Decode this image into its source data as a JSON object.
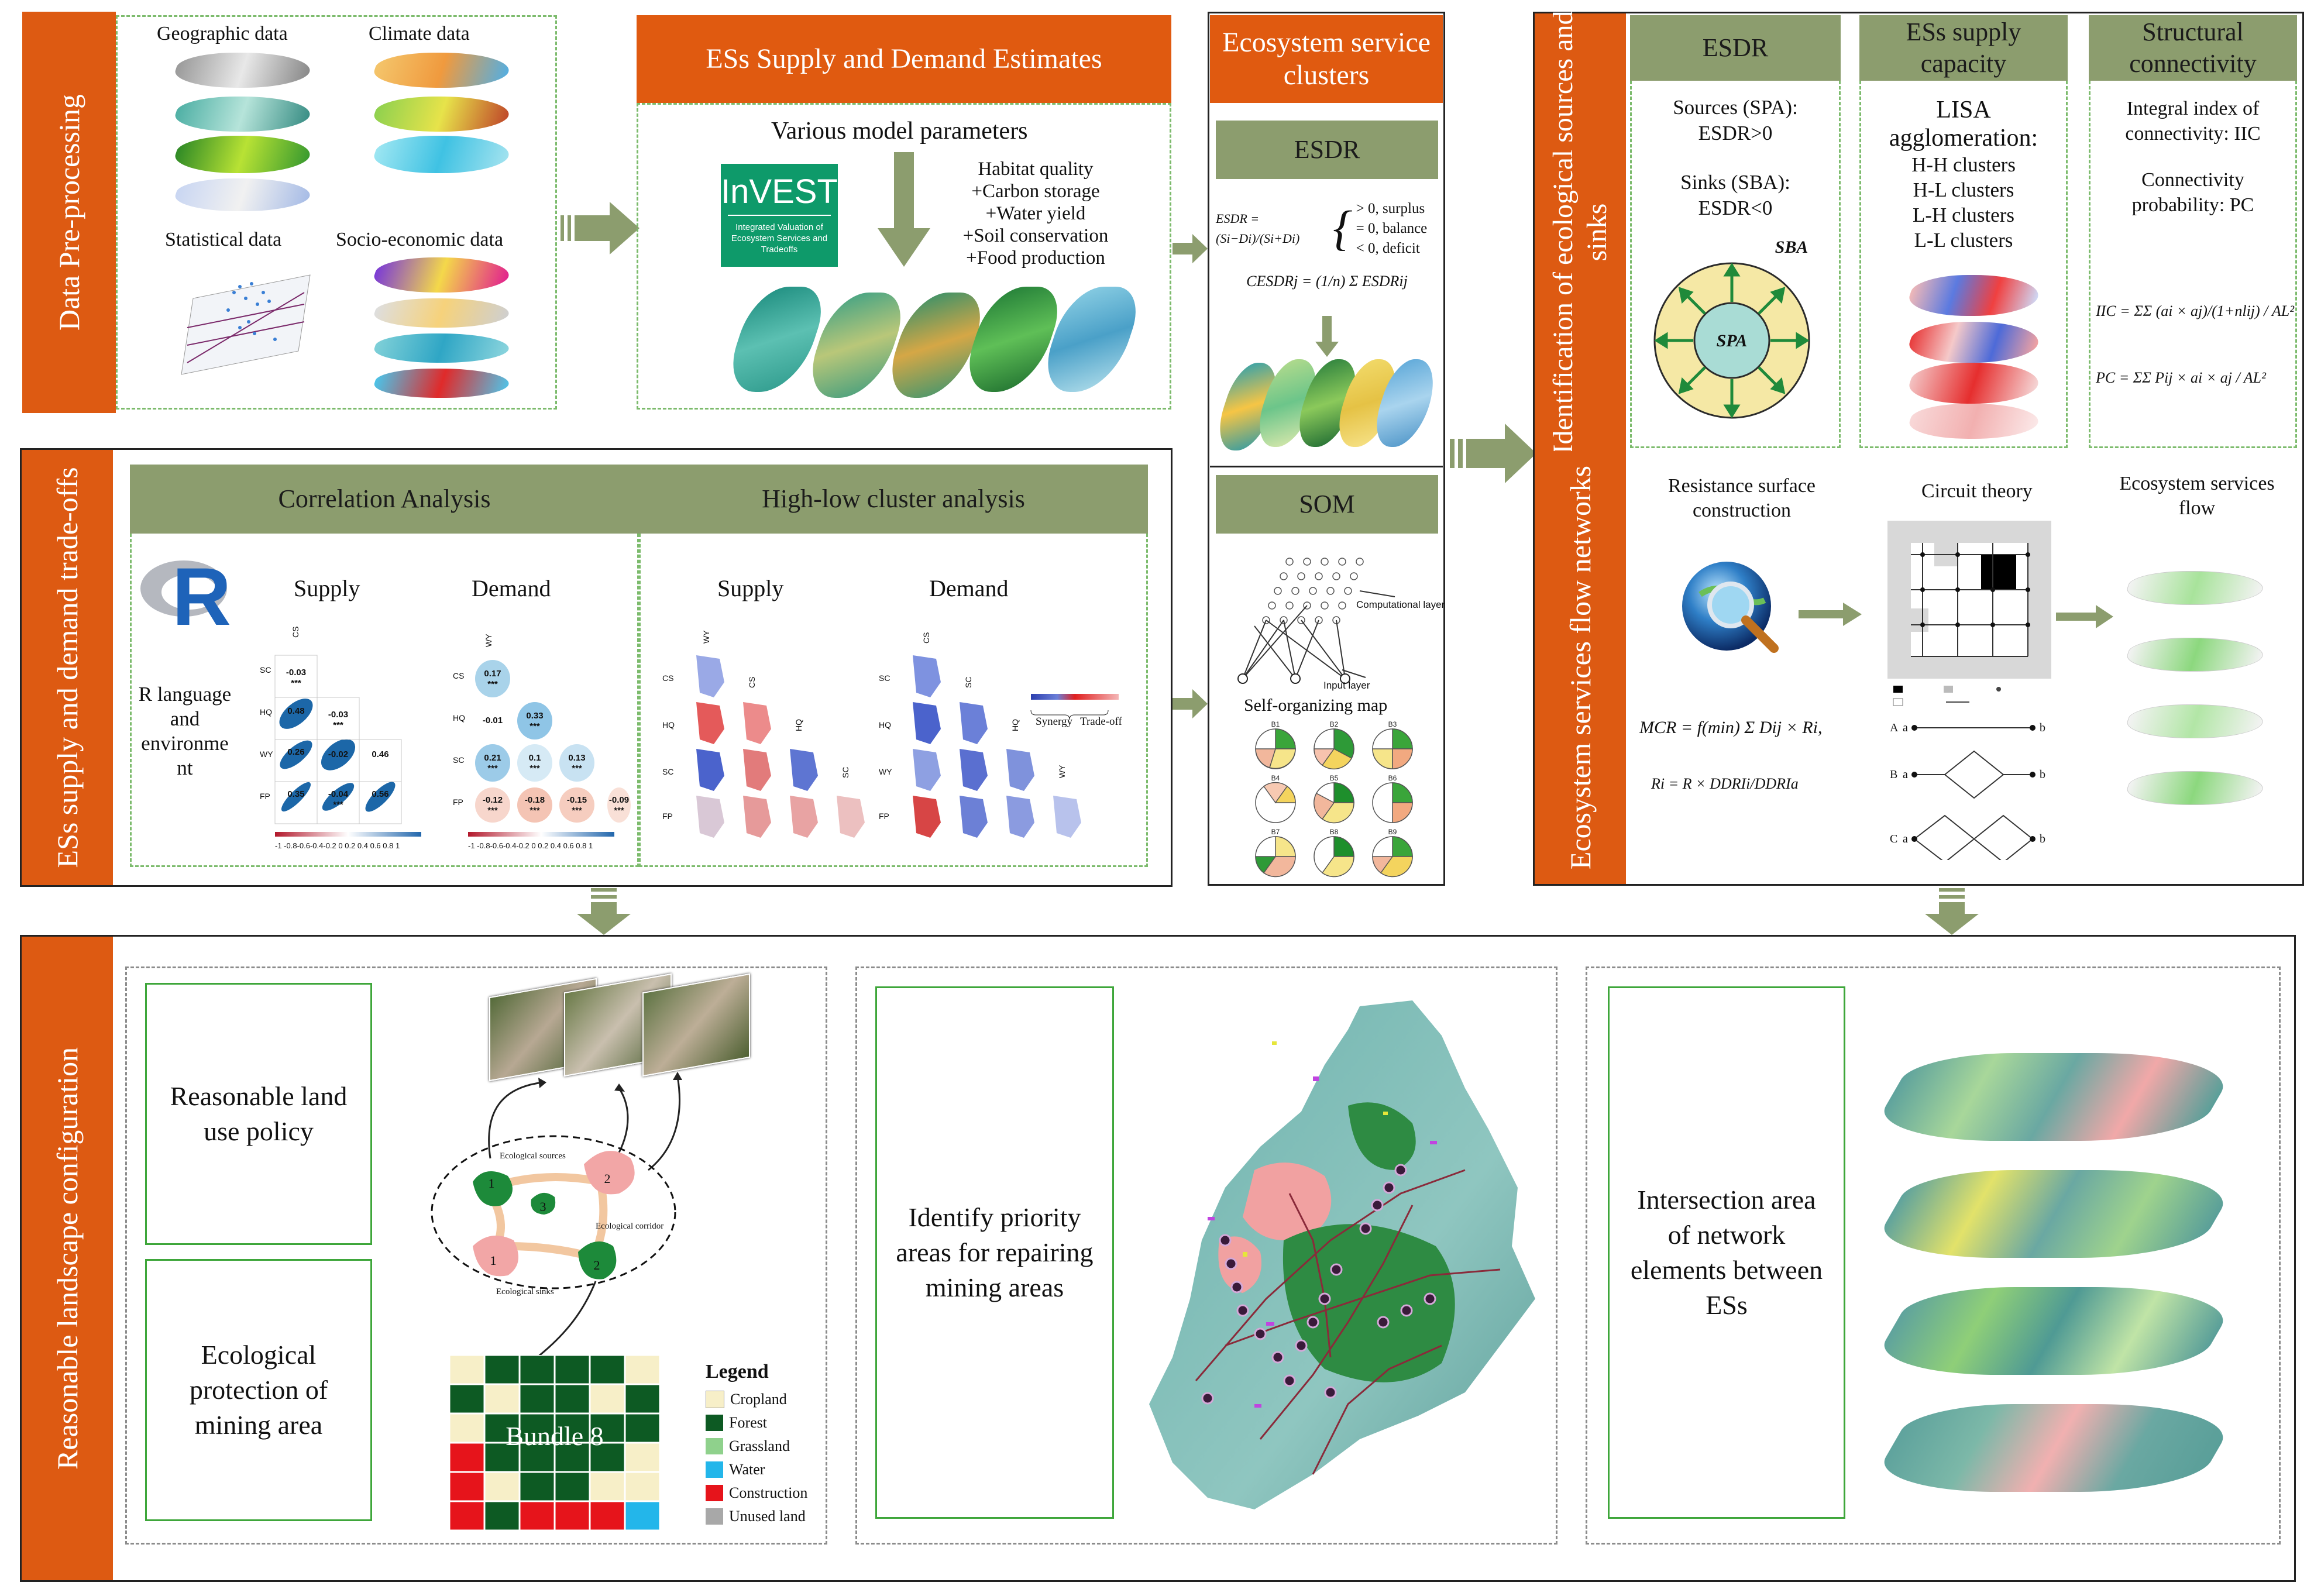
{
  "sections": {
    "preprocessing": {
      "title": "Data Pre-processing",
      "labels": [
        "Geographic data",
        "Climate data",
        "Statistical data",
        "Socio-economic data"
      ]
    },
    "estimates": {
      "title": "ESs Supply and Demand Estimates",
      "subtitle": "Various model parameters",
      "invest_logo": "InVEST",
      "invest_sub": "Integrated Valuation of Ecosystem Services and Tradeoffs",
      "services": [
        "Habitat quality",
        "+Carbon storage",
        "+Water yield",
        "+Soil conservation",
        "+Food production"
      ]
    },
    "clusters": {
      "title": "Ecosystem service clusters",
      "esdr_head": "ESDR",
      "esdr_formula": "ESDR = (Si−Di)/(Si+Di)",
      "esdr_cases": [
        "> 0, surplus",
        "= 0, balance",
        "< 0, deficit"
      ],
      "cesdr_formula": "CESDRj = (1/n) Σ ESDRij",
      "som_head": "SOM",
      "comp_layer": "Computational layer",
      "input_layer": "Input layer",
      "som_map": "Self-organizing map",
      "bundle_labels": [
        "B1",
        "B2",
        "B3",
        "B4",
        "B5",
        "B6",
        "B7",
        "B8",
        "B9"
      ]
    },
    "identification": {
      "title": "Identification of ecological sources and sinks",
      "col1_head": "ESDR",
      "col1_lines": [
        "Sources (SPA):",
        "ESDR>0",
        "Sinks (SBA):",
        "ESDR<0"
      ],
      "spa": "SPA",
      "sba": "SBA",
      "col2_head": "ESs supply capacity",
      "col2_lines": [
        "LISA",
        "agglomeration:",
        "H-H clusters",
        "H-L clusters",
        "L-H clusters",
        "L-L clusters"
      ],
      "col3_head": "Structural connectivity",
      "col3_lines": [
        "Integral index of",
        "connectivity: IIC",
        "Connectivity",
        "probability: PC"
      ],
      "iic_formula": "IIC = ΣΣ (ai × aj)/(1+nlij) / AL²",
      "pc_formula": "PC = ΣΣ Pij × ai × aj / AL²"
    },
    "tradeoffs": {
      "title": "ESs supply and demand trade-offs",
      "corr_head": "Correlation Analysis",
      "cluster_head": "High-low cluster analysis",
      "r_logo": "R",
      "r_text": [
        "R language",
        "and",
        "environme",
        "nt"
      ],
      "supply": "Supply",
      "demand": "Demand",
      "supply2": "Supply",
      "demand2": "Demand",
      "synergy": "Synergy",
      "tradeoff": "Trade-off",
      "var_labels": [
        "CS",
        "SC",
        "HQ",
        "WY",
        "FP"
      ],
      "supply_values": [
        "-0.03",
        "0.48",
        "-0.03",
        "0.26",
        "-0.02",
        "0.46",
        "-0.04",
        "0.35",
        "0.56"
      ],
      "demand_values": [
        "0.17",
        "-0.01",
        "0.33",
        "0.21",
        "0.1",
        "0.13",
        "-0.12",
        "-0.18",
        "-0.15",
        "-0.09"
      ],
      "stars": "***",
      "colorbar": "-1 -0.8-0.6-0.4-0.2  0  0.2 0.4 0.6 0.8  1"
    },
    "flow": {
      "title": "Ecosystem services flow networks",
      "resistance": [
        "Resistance surface",
        "construction"
      ],
      "circuit": "Circuit theory",
      "flow": [
        "Ecosystem services",
        "flow"
      ],
      "mcr": "MCR = f(min) Σ Dij × Ri,",
      "ri": "Ri = R × DDRIi/DDRIa",
      "circuit_rows": [
        "A",
        "B",
        "C"
      ],
      "circuit_a": "a",
      "circuit_b": "b"
    },
    "landscape": {
      "title": "Reasonable landscape configuration",
      "policy": "Reasonable land use policy",
      "protection": "Ecological protection of mining area",
      "eco_sources": "Ecological sources",
      "eco_corridor": "Ecological corridor",
      "eco_sinks": "Ecological sinks",
      "patch_labels": [
        "1",
        "2",
        "3",
        "1",
        "2"
      ],
      "bundle": "Bundle 8",
      "legend_title": "Legend",
      "legend": [
        {
          "label": "Cropland",
          "color": "#f7efc8"
        },
        {
          "label": "Forest",
          "color": "#0d5a23"
        },
        {
          "label": "Grassland",
          "color": "#8fd18c"
        },
        {
          "label": "Water",
          "color": "#23b6ea"
        },
        {
          "label": "Construction",
          "color": "#e6141b"
        },
        {
          "label": "Unused land",
          "color": "#a8a8a8"
        }
      ],
      "priority": "Identify priority areas for repairing mining areas",
      "intersection": "Intersection area of network elements between ESs"
    }
  },
  "colors": {
    "orange": "#dd5a12",
    "khaki": "#8c9d6e",
    "green_dash": "#7cbb6c",
    "arrow": "#8c9d6e"
  }
}
